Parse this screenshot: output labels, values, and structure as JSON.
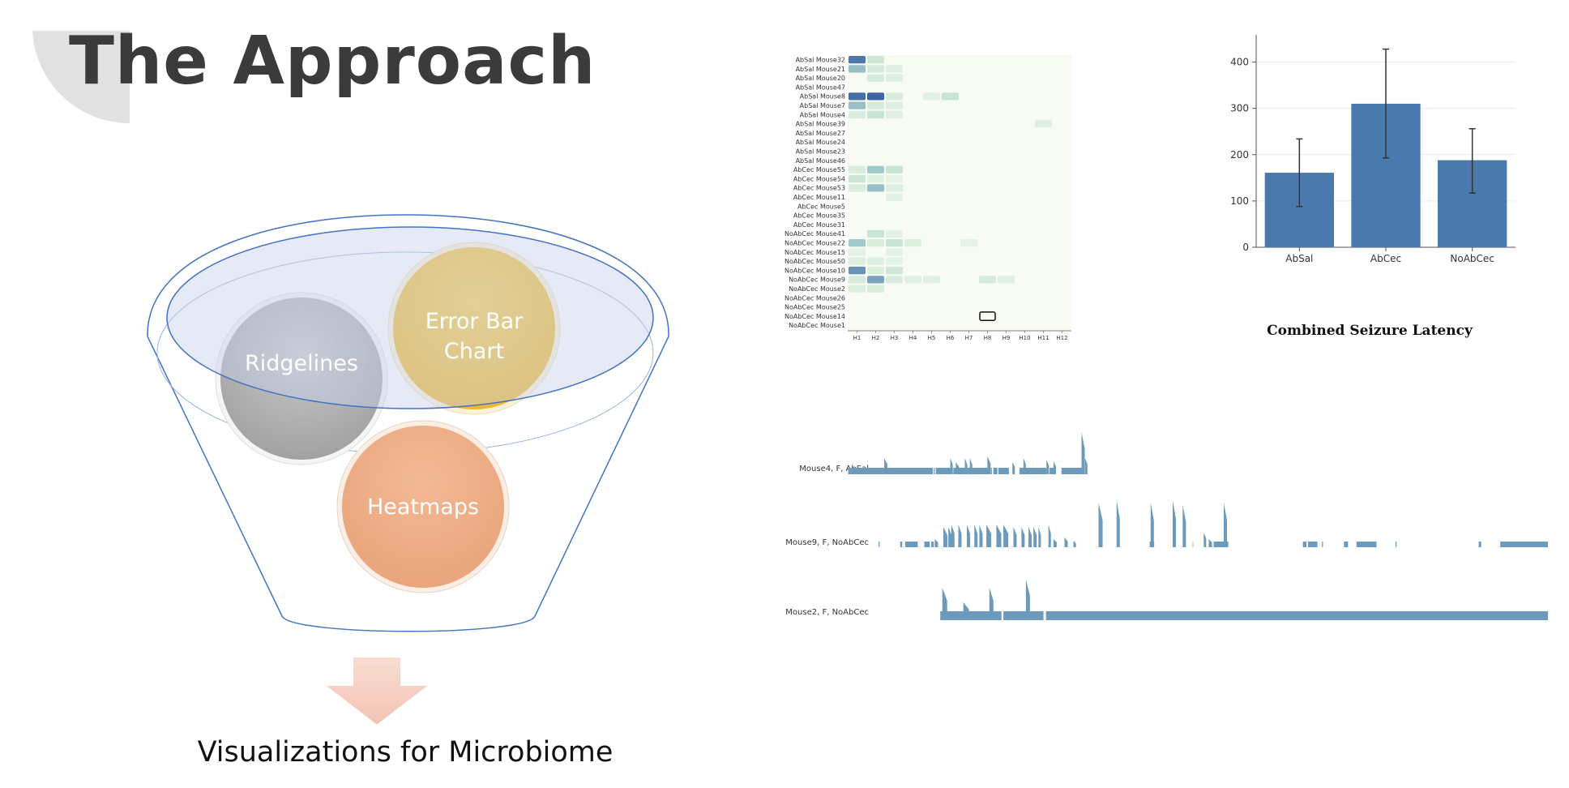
{
  "slide": {
    "title": "The Approach",
    "caption": "Visualizations for Microbiome"
  },
  "funnel": {
    "balls": [
      {
        "line1": "Ridgelines",
        "line2": "",
        "color": "#a8a8a8"
      },
      {
        "line1": "Error Bar",
        "line2": "Chart",
        "color": "#f2be3a"
      },
      {
        "line1": "Heatmaps",
        "line2": "",
        "color": "#ecaa80"
      }
    ],
    "rim_color": "#4472c4",
    "arrow_color": "#f6d3c8"
  },
  "heatmap": {
    "rows": [
      "AbSal Mouse32",
      "AbSal Mouse21",
      "AbSal Mouse20",
      "AbSal Mouse47",
      "AbSal Mouse8",
      "AbSal Mouse7",
      "AbSal Mouse4",
      "AbSal Mouse39",
      "AbSal Mouse27",
      "AbSal Mouse24",
      "AbSal Mouse23",
      "AbSal Mouse46",
      "AbCec Mouse55",
      "AbCec Mouse54",
      "AbCec Mouse53",
      "AbCec Mouse11",
      "AbCec Mouse5",
      "AbCec Mouse35",
      "AbCec Mouse31",
      "NoAbCec Mouse41",
      "NoAbCec Mouse22",
      "NoAbCec Mouse15",
      "NoAbCec Mouse50",
      "NoAbCec Mouse10",
      "NoAbCec Mouse9",
      "NoAbCec Mouse2",
      "NoAbCec Mouse26",
      "NoAbCec Mouse25",
      "NoAbCec Mouse14",
      "NoAbCec Mouse1"
    ],
    "cols": [
      "H1",
      "H2",
      "H3",
      "H4",
      "H5",
      "H6",
      "H7",
      "H8",
      "H9",
      "H10",
      "H11",
      "H12"
    ],
    "cells": [
      [
        0,
        0,
        0.8
      ],
      [
        0,
        1,
        0.2
      ],
      [
        1,
        0,
        0.4
      ],
      [
        1,
        1,
        0.15
      ],
      [
        1,
        2,
        0.08
      ],
      [
        2,
        1,
        0.15
      ],
      [
        2,
        2,
        0.08
      ],
      [
        4,
        0,
        0.85
      ],
      [
        4,
        1,
        0.9
      ],
      [
        4,
        2,
        0.12
      ],
      [
        4,
        4,
        0.07
      ],
      [
        4,
        5,
        0.25
      ],
      [
        5,
        0,
        0.4
      ],
      [
        5,
        1,
        0.15
      ],
      [
        5,
        2,
        0.1
      ],
      [
        6,
        0,
        0.12
      ],
      [
        6,
        1,
        0.25
      ],
      [
        6,
        2,
        0.08
      ],
      [
        7,
        10,
        0.08
      ],
      [
        12,
        0,
        0.12
      ],
      [
        12,
        1,
        0.35
      ],
      [
        12,
        2,
        0.25
      ],
      [
        13,
        0,
        0.22
      ],
      [
        13,
        1,
        0.08
      ],
      [
        13,
        2,
        0.06
      ],
      [
        14,
        0,
        0.12
      ],
      [
        14,
        1,
        0.4
      ],
      [
        14,
        2,
        0.1
      ],
      [
        15,
        2,
        0.07
      ],
      [
        19,
        1,
        0.25
      ],
      [
        19,
        2,
        0.06
      ],
      [
        20,
        0,
        0.35
      ],
      [
        20,
        1,
        0.12
      ],
      [
        20,
        2,
        0.25
      ],
      [
        20,
        3,
        0.1
      ],
      [
        20,
        6,
        0.06
      ],
      [
        21,
        0,
        0.06
      ],
      [
        21,
        2,
        0.06
      ],
      [
        22,
        0,
        0.1
      ],
      [
        22,
        1,
        0.1
      ],
      [
        22,
        2,
        0.06
      ],
      [
        23,
        0,
        0.65
      ],
      [
        23,
        1,
        0.1
      ],
      [
        23,
        2,
        0.2
      ],
      [
        24,
        0,
        0.15
      ],
      [
        24,
        1,
        0.55
      ],
      [
        24,
        2,
        0.12
      ],
      [
        24,
        3,
        0.08
      ],
      [
        24,
        4,
        0.08
      ],
      [
        24,
        7,
        0.15
      ],
      [
        24,
        8,
        0.08
      ],
      [
        25,
        0,
        0.1
      ],
      [
        25,
        1,
        0.12
      ]
    ],
    "selected": [
      28,
      7
    ]
  },
  "chart_data": {
    "type": "bar",
    "title": "Combined Seizure Latency",
    "categories": [
      "AbSal",
      "AbCec",
      "NoAbCec"
    ],
    "values": [
      161,
      310,
      188
    ],
    "error_low": [
      88,
      193,
      117
    ],
    "error_high": [
      234,
      428,
      256
    ],
    "yticks": [
      0,
      100,
      200,
      300,
      400
    ],
    "ylim": [
      0,
      450
    ],
    "bar_color": "#4a7aad"
  },
  "ridgelines": {
    "color": "#6b9abd",
    "rows": [
      {
        "label": "Mouse4, F, AbSal"
      },
      {
        "label": "Mouse9, F, NoAbCec"
      },
      {
        "label": "Mouse2, F, NoAbCec"
      }
    ]
  }
}
